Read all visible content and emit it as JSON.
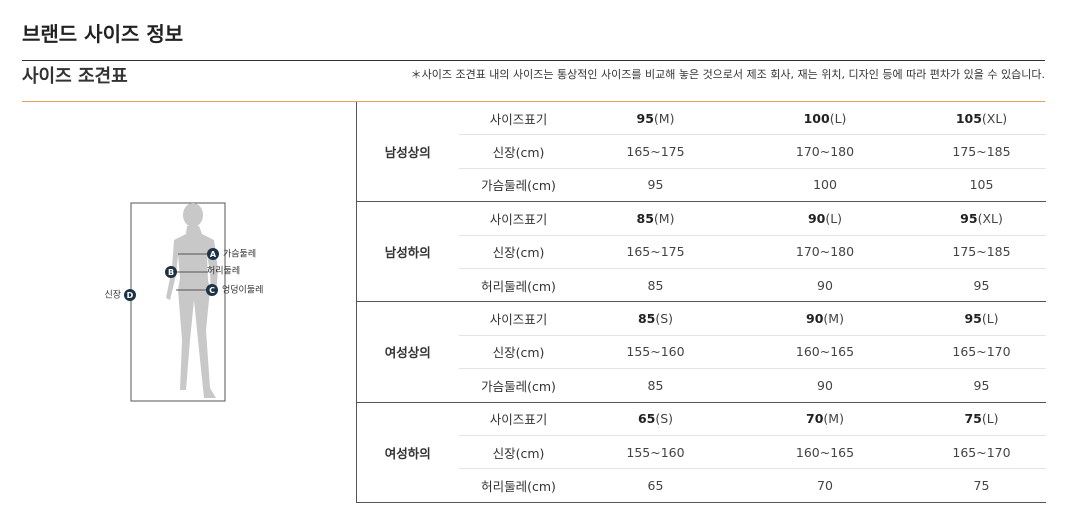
{
  "header": {
    "title": "브랜드 사이즈 정보",
    "subtitle": "사이즈 조견표",
    "note": "＊사이즈 조견표 내의 사이즈는 통상적인 사이즈를 비교해 놓은 것으로서 제조 회사, 재는 위치, 디자인 등에 따라 편차가 있을 수 있습니다."
  },
  "figure": {
    "labels": [
      {
        "letter": "A",
        "text": "가슴둘레"
      },
      {
        "letter": "B",
        "text": "허리둘레"
      },
      {
        "letter": "C",
        "text": "엉덩이둘레"
      },
      {
        "letter": "D",
        "text": "신장"
      }
    ]
  },
  "table": {
    "groups": [
      {
        "name": "남성상의",
        "rows": [
          {
            "label": "사이즈표기",
            "cells": [
              {
                "value": "95",
                "suffix": "(M)"
              },
              {
                "value": "100",
                "suffix": "(L)"
              },
              {
                "value": "105",
                "suffix": "(XL)"
              }
            ]
          },
          {
            "label": "신장(cm)",
            "cells": [
              "165~175",
              "170~180",
              "175~185"
            ]
          },
          {
            "label": "가슴둘레(cm)",
            "cells": [
              "95",
              "100",
              "105"
            ]
          }
        ]
      },
      {
        "name": "남성하의",
        "rows": [
          {
            "label": "사이즈표기",
            "cells": [
              {
                "value": "85",
                "suffix": "(M)"
              },
              {
                "value": "90",
                "suffix": "(L)"
              },
              {
                "value": "95",
                "suffix": "(XL)"
              }
            ]
          },
          {
            "label": "신장(cm)",
            "cells": [
              "165~175",
              "170~180",
              "175~185"
            ]
          },
          {
            "label": "허리둘레(cm)",
            "cells": [
              "85",
              "90",
              "95"
            ]
          }
        ]
      },
      {
        "name": "여성상의",
        "rows": [
          {
            "label": "사이즈표기",
            "cells": [
              {
                "value": "85",
                "suffix": "(S)"
              },
              {
                "value": "90",
                "suffix": "(M)"
              },
              {
                "value": "95",
                "suffix": "(L)"
              }
            ]
          },
          {
            "label": "신장(cm)",
            "cells": [
              "155~160",
              "160~165",
              "165~170"
            ]
          },
          {
            "label": "가슴둘레(cm)",
            "cells": [
              "85",
              "90",
              "95"
            ]
          }
        ]
      },
      {
        "name": "여성하의",
        "rows": [
          {
            "label": "사이즈표기",
            "cells": [
              {
                "value": "65",
                "suffix": "(S)"
              },
              {
                "value": "70",
                "suffix": "(M)"
              },
              {
                "value": "75",
                "suffix": "(L)"
              }
            ]
          },
          {
            "label": "신장(cm)",
            "cells": [
              "155~160",
              "160~165",
              "165~170"
            ]
          },
          {
            "label": "허리둘레(cm)",
            "cells": [
              "65",
              "70",
              "75"
            ]
          }
        ]
      }
    ]
  }
}
